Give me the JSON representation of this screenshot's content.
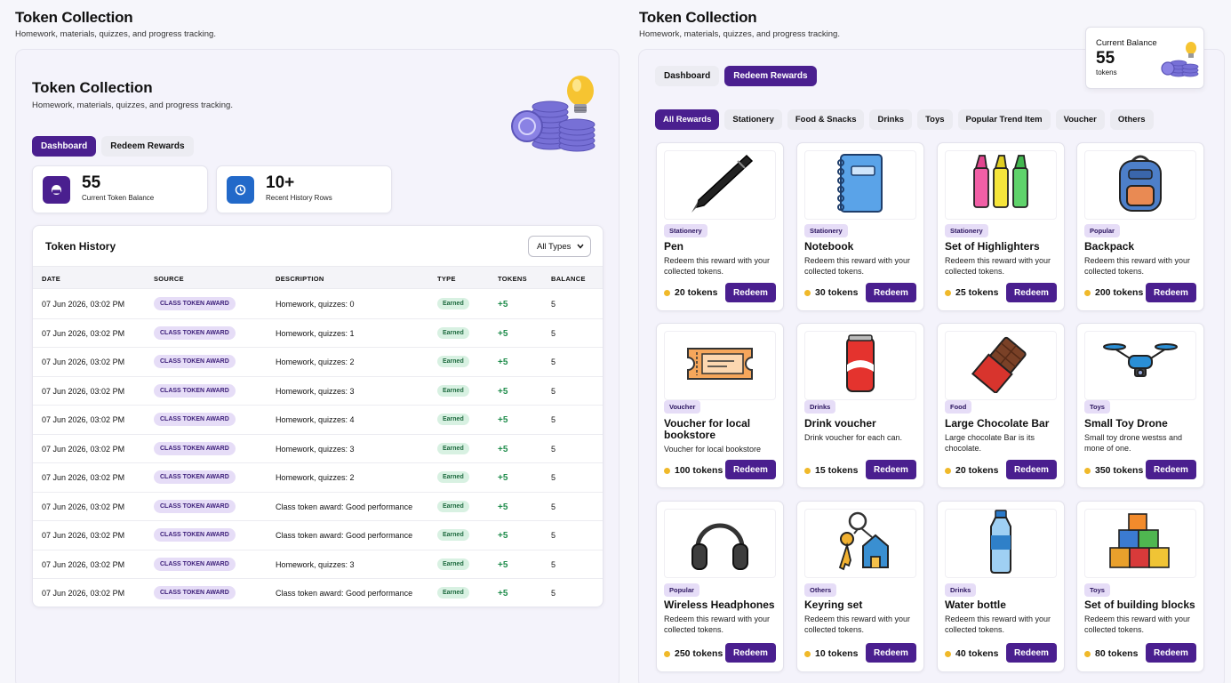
{
  "left": {
    "header_title": "Token Collection",
    "header_subtitle": "Homework, materials, quizzes, and progress tracking.",
    "hero_title": "Token Collection",
    "hero_subtitle": "Homework, materials, quizzes, and progress tracking.",
    "tabs": [
      {
        "label": "Dashboard"
      },
      {
        "label": "Redeem Rewards"
      }
    ],
    "stats": [
      {
        "value": "55",
        "label": "Current Token Balance"
      },
      {
        "value": "10+",
        "label": "Recent History Rows"
      }
    ],
    "history": {
      "title": "Token History",
      "filter": "All Types",
      "columns": [
        "DATE",
        "SOURCE",
        "DESCRIPTION",
        "TYPE",
        "TOKENS",
        "BALANCE"
      ],
      "rows": [
        {
          "date": "07 Jun 2026, 03:02 PM",
          "source": "CLASS TOKEN AWARD",
          "description": "Homework, quizzes: 0",
          "type": "Earned",
          "tokens": "+5",
          "balance": "5"
        },
        {
          "date": "07 Jun 2026, 03:02 PM",
          "source": "CLASS TOKEN AWARD",
          "description": "Homework, quizzes: 1",
          "type": "Earned",
          "tokens": "+5",
          "balance": "5"
        },
        {
          "date": "07 Jun 2026, 03:02 PM",
          "source": "CLASS TOKEN AWARD",
          "description": "Homework, quizzes: 2",
          "type": "Earned",
          "tokens": "+5",
          "balance": "5"
        },
        {
          "date": "07 Jun 2026, 03:02 PM",
          "source": "CLASS TOKEN AWARD",
          "description": "Homework, quizzes: 3",
          "type": "Earned",
          "tokens": "+5",
          "balance": "5"
        },
        {
          "date": "07 Jun 2026, 03:02 PM",
          "source": "CLASS TOKEN AWARD",
          "description": "Homework, quizzes: 4",
          "type": "Earned",
          "tokens": "+5",
          "balance": "5"
        },
        {
          "date": "07 Jun 2026, 03:02 PM",
          "source": "CLASS TOKEN AWARD",
          "description": "Homework, quizzes: 3",
          "type": "Earned",
          "tokens": "+5",
          "balance": "5"
        },
        {
          "date": "07 Jun 2026, 03:02 PM",
          "source": "CLASS TOKEN AWARD",
          "description": "Homework, quizzes: 2",
          "type": "Earned",
          "tokens": "+5",
          "balance": "5"
        },
        {
          "date": "07 Jun 2026, 03:02 PM",
          "source": "CLASS TOKEN AWARD",
          "description": "Class token award: Good performance",
          "type": "Earned",
          "tokens": "+5",
          "balance": "5"
        },
        {
          "date": "07 Jun 2026, 03:02 PM",
          "source": "CLASS TOKEN AWARD",
          "description": "Class token award: Good performance",
          "type": "Earned",
          "tokens": "+5",
          "balance": "5"
        },
        {
          "date": "07 Jun 2026, 03:02 PM",
          "source": "CLASS TOKEN AWARD",
          "description": "Homework, quizzes: 3",
          "type": "Earned",
          "tokens": "+5",
          "balance": "5"
        },
        {
          "date": "07 Jun 2026, 03:02 PM",
          "source": "CLASS TOKEN AWARD",
          "description": "Class token award: Good performance",
          "type": "Earned",
          "tokens": "+5",
          "balance": "5"
        }
      ]
    }
  },
  "right": {
    "header_title": "Token Collection",
    "header_subtitle": "Homework, materials, quizzes, and progress tracking.",
    "tabs": [
      {
        "label": "Dashboard"
      },
      {
        "label": "Redeem Rewards"
      }
    ],
    "balance": {
      "title": "Current Balance",
      "value": "55",
      "unit": "tokens"
    },
    "categories": [
      "All Rewards",
      "Stationery",
      "Food & Snacks",
      "Drinks",
      "Toys",
      "Popular Trend Item",
      "Voucher",
      "Others"
    ],
    "redeem_label": "Redeem",
    "products": [
      {
        "icon": "pen-icon",
        "badge": "Stationery",
        "name": "Pen",
        "desc": "Redeem this reward with your collected tokens.",
        "price": "20 tokens"
      },
      {
        "icon": "notebook-icon",
        "badge": "Stationery",
        "name": "Notebook",
        "desc": "Redeem this reward with your collected tokens.",
        "price": "30 tokens"
      },
      {
        "icon": "highlighters-icon",
        "badge": "Stationery",
        "name": "Set of Highlighters",
        "desc": "Redeem this reward with your collected tokens.",
        "price": "25 tokens"
      },
      {
        "icon": "backpack-icon",
        "badge": "Popular",
        "name": "Backpack",
        "desc": "Redeem this reward with your collected tokens.",
        "price": "200 tokens"
      },
      {
        "icon": "ticket-icon",
        "badge": "Voucher",
        "name": "Voucher for local bookstore",
        "desc": "Voucher for local bookstore",
        "price": "100 tokens"
      },
      {
        "icon": "soda-can-icon",
        "badge": "Drinks",
        "name": "Drink voucher",
        "desc": "Drink voucher for each can.",
        "price": "15 tokens"
      },
      {
        "icon": "chocolate-icon",
        "badge": "Food",
        "name": "Large Chocolate Bar",
        "desc": "Large chocolate Bar is its chocolate.",
        "price": "20 tokens"
      },
      {
        "icon": "drone-icon",
        "badge": "Toys",
        "name": "Small Toy Drone",
        "desc": "Small toy drone westss and mone of one.",
        "price": "350 tokens"
      },
      {
        "icon": "headphones-icon",
        "badge": "Popular",
        "name": "Wireless Headphones",
        "desc": "Redeem this reward with your collected tokens.",
        "price": "250 tokens"
      },
      {
        "icon": "keyring-icon",
        "badge": "Others",
        "name": "Keyring set",
        "desc": "Redeem this reward with your collected tokens.",
        "price": "10 tokens"
      },
      {
        "icon": "water-bottle-icon",
        "badge": "Drinks",
        "name": "Water bottle",
        "desc": "Redeem this reward with your collected tokens.",
        "price": "40 tokens"
      },
      {
        "icon": "building-blocks-icon",
        "badge": "Toys",
        "name": "Set of building blocks",
        "desc": "Redeem this reward with your collected tokens.",
        "price": "80 tokens"
      }
    ]
  },
  "colors": {
    "accent": "#4a1f8f",
    "earned": "#1f8c4b",
    "coin": "#f0b92a"
  }
}
